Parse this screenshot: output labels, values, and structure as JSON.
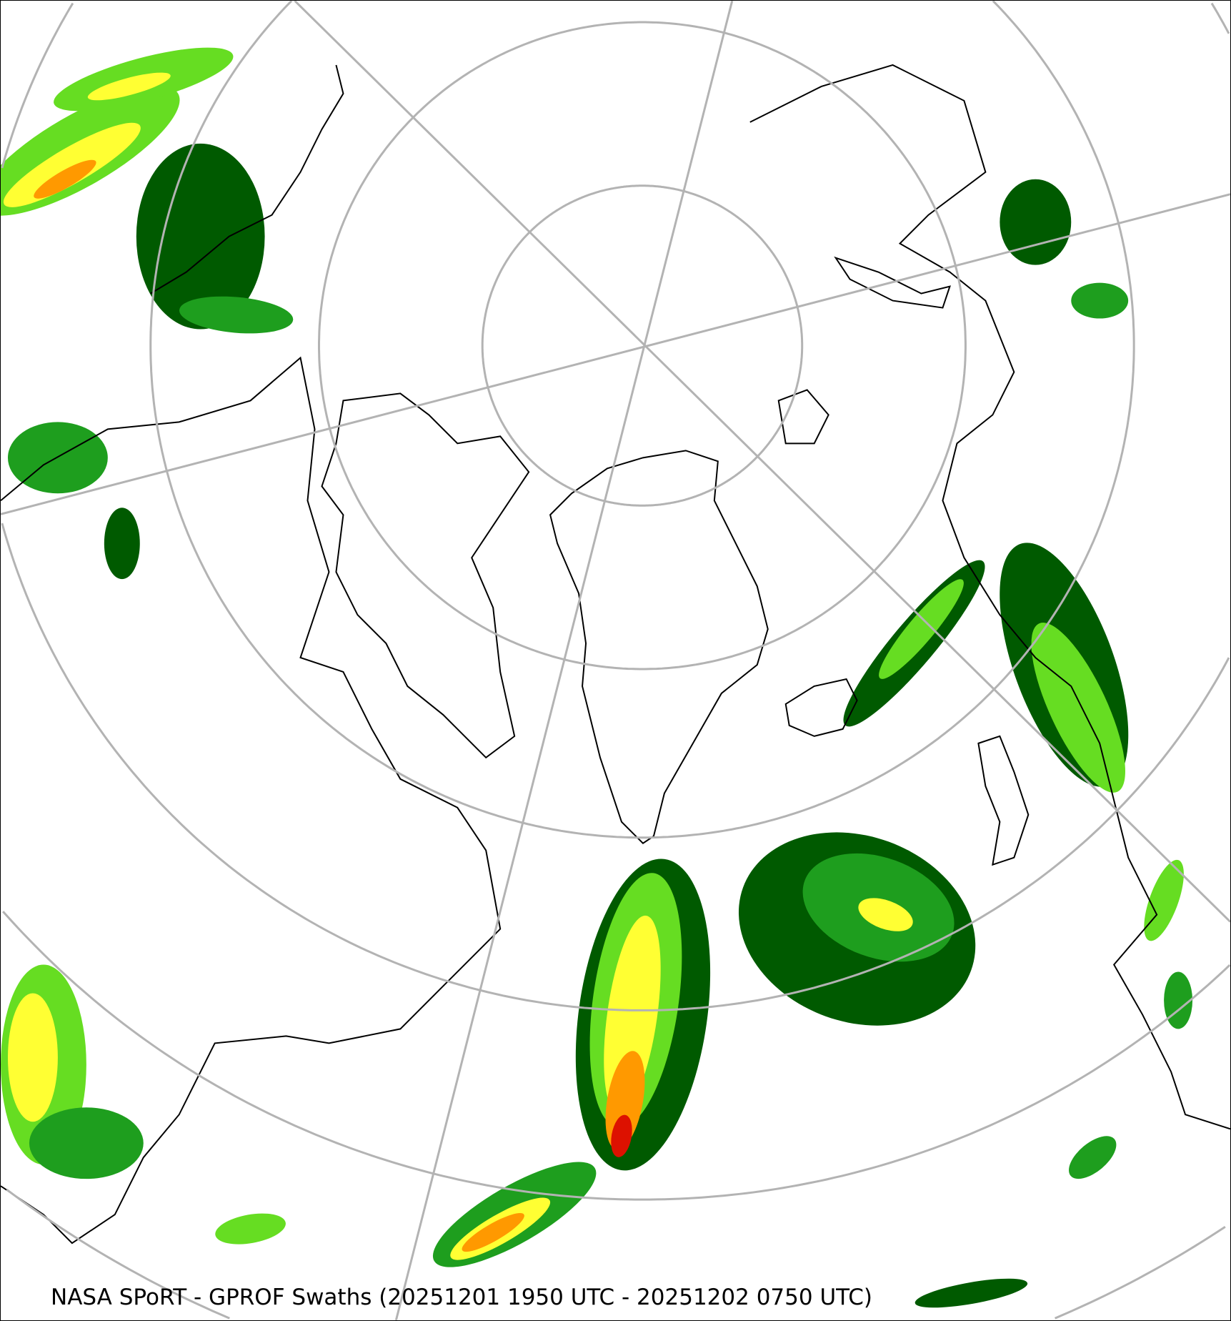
{
  "caption": "NASA SPoRT - GPROF Swaths (20251201 1950 UTC - 20251202 0750 UTC)",
  "projection": "north-polar-stereographic",
  "colors": {
    "graticule": "#b3b3b3",
    "coastline": "#000000",
    "precip_light_dark": "#005a00",
    "precip_light": "#1e9e1e",
    "precip_moderate": "#66dd22",
    "precip_heavy_low": "#ffff33",
    "precip_heavy": "#ff9900",
    "precip_extreme": "#dd1100"
  }
}
